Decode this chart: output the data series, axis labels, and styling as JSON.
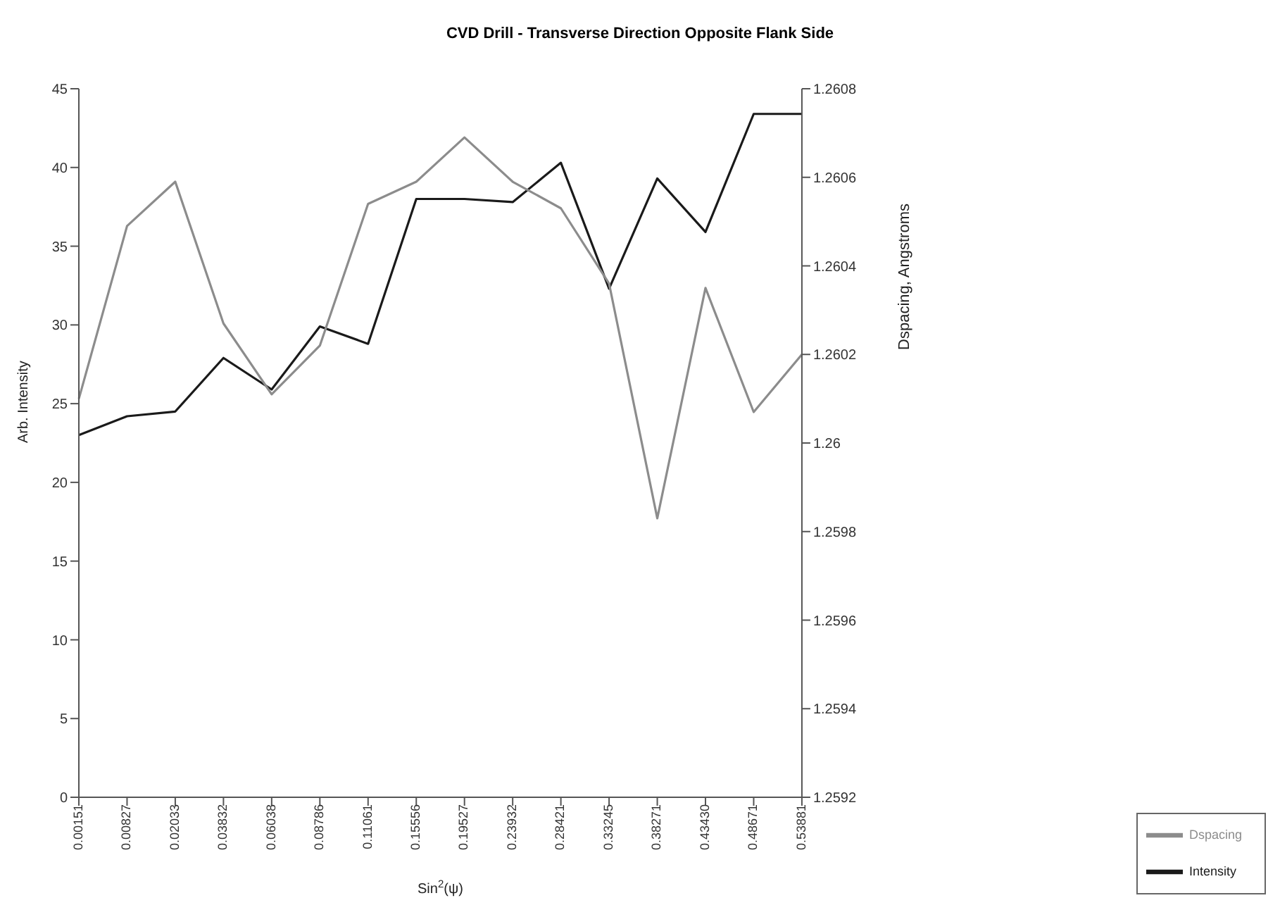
{
  "chart_data": {
    "type": "line",
    "title": "CVD Drill - Transverse Direction Opposite Flank Side",
    "xlabel": "Sin$^{2}$(ψ)",
    "ylabel": "Arb. Intensity",
    "y2label": "Dspacing, Angstroms",
    "categories": [
      "0.00151",
      "0.00827",
      "0.02033",
      "0.03832",
      "0.06038",
      "0.08786",
      "0.11061",
      "0.15556",
      "0.19527",
      "0.23932",
      "0.28421",
      "0.33245",
      "0.38271",
      "0.43430",
      "0.48671",
      "0.53881"
    ],
    "series": [
      {
        "name": "Intensity",
        "color": "#1a1a1a",
        "values": [
          23,
          24.2,
          24.5,
          27.9,
          25.9,
          29.9,
          28.8,
          38.0,
          38.0,
          37.8,
          40.3,
          32.3,
          39.3,
          35.9,
          43.4,
          43.4
        ]
      },
      {
        "name": "Dspacing",
        "color": "#8c8c8c",
        "axis": "y2",
        "values": [
          1.2601,
          1.26049,
          1.26059,
          1.26027,
          1.26011,
          1.26022,
          1.26054,
          1.26059,
          1.26069,
          1.26059,
          1.26053,
          1.26036,
          1.25983,
          1.26035,
          1.26007,
          1.2602
        ]
      }
    ],
    "ylim": [
      0,
      45
    ],
    "yticks": [
      0,
      5,
      10,
      15,
      20,
      25,
      30,
      35,
      40,
      45
    ],
    "y2lim": [
      1.2592,
      1.2608
    ],
    "y2ticks": [
      1.2592,
      1.2594,
      1.2596,
      1.2598,
      1.26,
      1.2602,
      1.2604,
      1.2606,
      1.2608
    ],
    "grid": false,
    "legend": "bottom right",
    "marker": "none",
    "line_style": "solid"
  }
}
